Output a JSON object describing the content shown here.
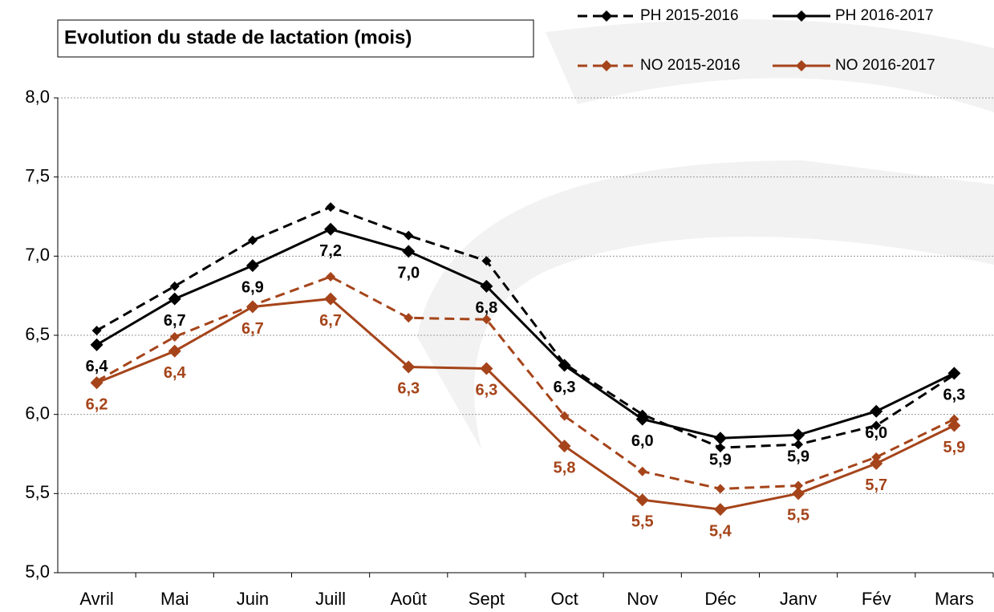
{
  "chart_data": {
    "type": "line",
    "title": "Evolution du stade de lactation (mois)",
    "categories": [
      "Avril",
      "Mai",
      "Juin",
      "Juill",
      "Août",
      "Sept",
      "Oct",
      "Nov",
      "Déc",
      "Janv",
      "Fév",
      "Mars"
    ],
    "ylim": [
      5.0,
      8.0
    ],
    "yticks": [
      {
        "value": 5.0,
        "label": "5,0"
      },
      {
        "value": 5.5,
        "label": "5,5"
      },
      {
        "value": 6.0,
        "label": "6,0"
      },
      {
        "value": 6.5,
        "label": "6,5"
      },
      {
        "value": 7.0,
        "label": "7,0"
      },
      {
        "value": 7.5,
        "label": "7,5"
      },
      {
        "value": 8.0,
        "label": "8,0"
      }
    ],
    "grid": true,
    "series": [
      {
        "name": "PH 2015-2016",
        "color": "#000000",
        "dashed": true,
        "values": [
          6.53,
          6.81,
          7.1,
          7.31,
          7.13,
          6.97,
          6.32,
          6.0,
          5.79,
          5.81,
          5.93,
          6.25
        ]
      },
      {
        "name": "PH 2016-2017",
        "color": "#000000",
        "dashed": false,
        "values": [
          6.44,
          6.73,
          6.94,
          7.17,
          7.03,
          6.81,
          6.31,
          5.97,
          5.85,
          5.87,
          6.02,
          6.26
        ],
        "value_labels": [
          "6,4",
          "6,7",
          "6,9",
          "7,2",
          "7,0",
          "6,8",
          "6,3",
          "6,0",
          "5,9",
          "5,9",
          "6,0",
          "6,3"
        ]
      },
      {
        "name": "NO 2015-2016",
        "color": "#a5441a",
        "dashed": true,
        "values": [
          6.21,
          6.49,
          6.69,
          6.87,
          6.61,
          6.6,
          5.99,
          5.64,
          5.53,
          5.55,
          5.73,
          5.97
        ]
      },
      {
        "name": "NO 2016-2017",
        "color": "#a5441a",
        "dashed": false,
        "values": [
          6.2,
          6.4,
          6.68,
          6.73,
          6.3,
          6.29,
          5.8,
          5.46,
          5.4,
          5.5,
          5.69,
          5.93
        ],
        "value_labels": [
          "6,2",
          "6,4",
          "6,7",
          "6,7",
          "6,3",
          "6,3",
          "5,8",
          "5,5",
          "5,4",
          "5,5",
          "5,7",
          "5,9"
        ]
      }
    ]
  }
}
